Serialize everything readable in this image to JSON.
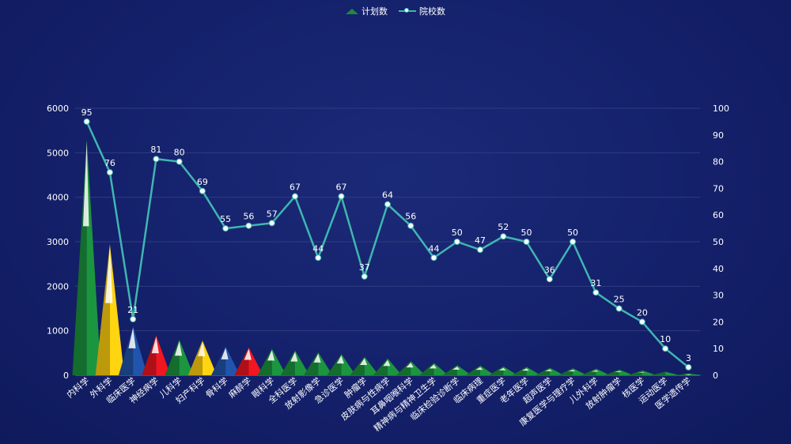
{
  "chart_data": {
    "type": "bar",
    "legend_position": "top-center",
    "categories": [
      "内科学",
      "外科学",
      "临床医学",
      "神经病学",
      "儿科学",
      "妇产科学",
      "骨科学",
      "麻醉学",
      "眼科学",
      "全科医学",
      "放射影像学",
      "急诊医学",
      "肿瘤学",
      "皮肤病与性病学",
      "耳鼻咽喉科学",
      "精神病与精神卫生学",
      "临床检验诊断学",
      "临床病理",
      "重症医学",
      "老年医学",
      "超声医学",
      "康复医学与理疗学",
      "儿外科学",
      "放射肿瘤学",
      "核医学",
      "运动医学",
      "医学遗传学"
    ],
    "series": [
      {
        "name": "计划数",
        "type": "bar",
        "axis": "left",
        "values": [
          5300,
          2950,
          1100,
          900,
          800,
          780,
          650,
          630,
          600,
          560,
          520,
          480,
          420,
          380,
          320,
          280,
          230,
          220,
          200,
          190,
          170,
          160,
          150,
          130,
          110,
          80,
          40
        ]
      },
      {
        "name": "院校数",
        "type": "line",
        "axis": "right",
        "values": [
          95,
          76,
          21,
          81,
          80,
          69,
          55,
          56,
          57,
          67,
          44,
          67,
          37,
          64,
          56,
          44,
          50,
          47,
          52,
          50,
          36,
          50,
          31,
          25,
          20,
          10,
          3
        ]
      }
    ],
    "y_left": {
      "min": 0,
      "max": 6000,
      "ticks": [
        0,
        1000,
        2000,
        3000,
        4000,
        5000,
        6000
      ]
    },
    "y_right": {
      "min": 0,
      "max": 100,
      "ticks": [
        0,
        10,
        20,
        30,
        40,
        50,
        60,
        70,
        80,
        90,
        100
      ]
    },
    "grid": true,
    "colors": {
      "bar_palette": [
        "#1a8a3a",
        "#f2c40f",
        "#1f4fa0",
        "#e0141e",
        "#1a8a3a",
        "#f2c40f",
        "#1f4fa0",
        "#e0141e",
        "#1a8a3a"
      ],
      "bar_default": "#1a8a3a",
      "line": "#3fb6b0",
      "point": "#ffffff",
      "grid": "#2f3c80",
      "axis_text": "#ffffff"
    }
  }
}
